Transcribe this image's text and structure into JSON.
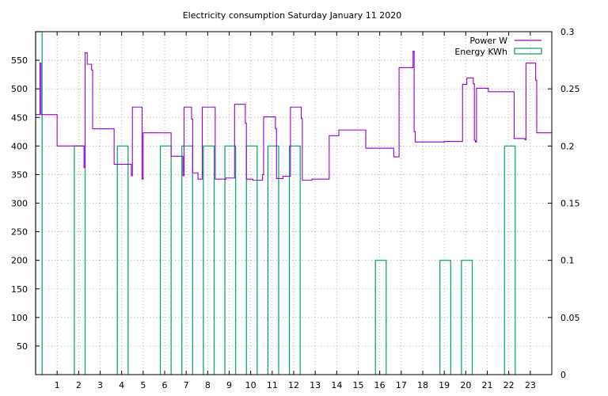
{
  "chart_data": {
    "type": "line",
    "title": "Electricity consumption Saturday January 11 2020",
    "x_axis": {
      "range": [
        0,
        24
      ],
      "ticks": [
        1,
        2,
        3,
        4,
        5,
        6,
        7,
        8,
        9,
        10,
        11,
        12,
        13,
        14,
        15,
        16,
        17,
        18,
        19,
        20,
        21,
        22,
        23
      ],
      "tick_labels": [
        "1",
        "2",
        "3",
        "4",
        "5",
        "6",
        "7",
        "8",
        "9",
        "10",
        "11",
        "12",
        "13",
        "14",
        "15",
        "16",
        "17",
        "18",
        "19",
        "20",
        "21",
        "22",
        "23"
      ]
    },
    "y_axis_left": {
      "range": [
        0,
        600
      ],
      "ticks": [
        50,
        100,
        150,
        200,
        250,
        300,
        350,
        400,
        450,
        500,
        550
      ],
      "tick_labels": [
        "50",
        "100",
        "150",
        "200",
        "250",
        "300",
        "350",
        "400",
        "450",
        "500",
        "550"
      ]
    },
    "y_axis_right": {
      "range": [
        0,
        0.3
      ],
      "ticks": [
        0,
        0.05,
        0.1,
        0.15,
        0.2,
        0.25,
        0.3
      ],
      "tick_labels": [
        "0",
        "0.05",
        "0.1",
        "0.15",
        "0.2",
        "0.25",
        "0.3"
      ]
    },
    "grid": true,
    "legend_position": "top-right",
    "series": [
      {
        "name": "Power W",
        "axis": "left",
        "color": "#9400d3",
        "style": "step",
        "points": [
          [
            0.0,
            455
          ],
          [
            0.2,
            545
          ],
          [
            0.25,
            455
          ],
          [
            1.0,
            400
          ],
          [
            1.9,
            400
          ],
          [
            2.2,
            400
          ],
          [
            2.25,
            362
          ],
          [
            2.3,
            563
          ],
          [
            2.4,
            543
          ],
          [
            2.6,
            533
          ],
          [
            2.65,
            430
          ],
          [
            3.6,
            430
          ],
          [
            3.65,
            368
          ],
          [
            4.4,
            368
          ],
          [
            4.45,
            348
          ],
          [
            4.5,
            468
          ],
          [
            4.9,
            468
          ],
          [
            4.95,
            342
          ],
          [
            5.0,
            423
          ],
          [
            6.2,
            423
          ],
          [
            6.3,
            382
          ],
          [
            6.8,
            382
          ],
          [
            6.85,
            348
          ],
          [
            6.9,
            468
          ],
          [
            7.2,
            468
          ],
          [
            7.25,
            447
          ],
          [
            7.3,
            353
          ],
          [
            7.5,
            353
          ],
          [
            7.55,
            342
          ],
          [
            7.7,
            342
          ],
          [
            7.75,
            468
          ],
          [
            8.3,
            468
          ],
          [
            8.35,
            342
          ],
          [
            8.8,
            342
          ],
          [
            8.85,
            344
          ],
          [
            9.2,
            344
          ],
          [
            9.25,
            473
          ],
          [
            9.7,
            473
          ],
          [
            9.75,
            440
          ],
          [
            9.8,
            342
          ],
          [
            10.0,
            342
          ],
          [
            10.1,
            340
          ],
          [
            10.5,
            340
          ],
          [
            10.55,
            350
          ],
          [
            10.6,
            451
          ],
          [
            11.1,
            451
          ],
          [
            11.15,
            430
          ],
          [
            11.2,
            343
          ],
          [
            11.4,
            343
          ],
          [
            11.5,
            347
          ],
          [
            11.8,
            347
          ],
          [
            11.85,
            468
          ],
          [
            12.3,
            468
          ],
          [
            12.35,
            448
          ],
          [
            12.4,
            340
          ],
          [
            12.8,
            340
          ],
          [
            12.85,
            342
          ],
          [
            13.6,
            342
          ],
          [
            13.65,
            418
          ],
          [
            14.0,
            418
          ],
          [
            14.1,
            428
          ],
          [
            15.3,
            428
          ],
          [
            15.35,
            396
          ],
          [
            16.6,
            396
          ],
          [
            16.65,
            381
          ],
          [
            16.85,
            381
          ],
          [
            16.9,
            537
          ],
          [
            17.5,
            537
          ],
          [
            17.55,
            566
          ],
          [
            17.6,
            425
          ],
          [
            17.65,
            407
          ],
          [
            18.9,
            407
          ],
          [
            19.0,
            408
          ],
          [
            19.8,
            408
          ],
          [
            19.85,
            508
          ],
          [
            20.0,
            508
          ],
          [
            20.05,
            519
          ],
          [
            20.3,
            519
          ],
          [
            20.35,
            509
          ],
          [
            20.4,
            410
          ],
          [
            20.45,
            407
          ],
          [
            20.5,
            501
          ],
          [
            21.0,
            501
          ],
          [
            21.05,
            495
          ],
          [
            22.2,
            495
          ],
          [
            22.25,
            413
          ],
          [
            22.7,
            413
          ],
          [
            22.75,
            411
          ],
          [
            22.8,
            545
          ],
          [
            23.2,
            545
          ],
          [
            23.25,
            515
          ],
          [
            23.3,
            423
          ],
          [
            24.0,
            423
          ]
        ]
      },
      {
        "name": "Energy KWh",
        "axis": "right",
        "color": "#009e73",
        "style": "bars",
        "bars": [
          [
            0.0,
            0.3,
            0.3
          ],
          [
            1.8,
            2.3,
            0.2
          ],
          [
            3.8,
            4.3,
            0.2
          ],
          [
            5.8,
            6.3,
            0.2
          ],
          [
            6.8,
            7.3,
            0.2
          ],
          [
            7.8,
            8.3,
            0.2
          ],
          [
            8.8,
            9.3,
            0.2
          ],
          [
            9.8,
            10.3,
            0.2
          ],
          [
            10.8,
            11.3,
            0.2
          ],
          [
            11.8,
            12.3,
            0.2
          ],
          [
            15.8,
            16.3,
            0.1
          ],
          [
            18.8,
            19.3,
            0.1
          ],
          [
            19.8,
            20.3,
            0.1
          ],
          [
            21.8,
            22.3,
            0.2
          ]
        ]
      }
    ]
  }
}
